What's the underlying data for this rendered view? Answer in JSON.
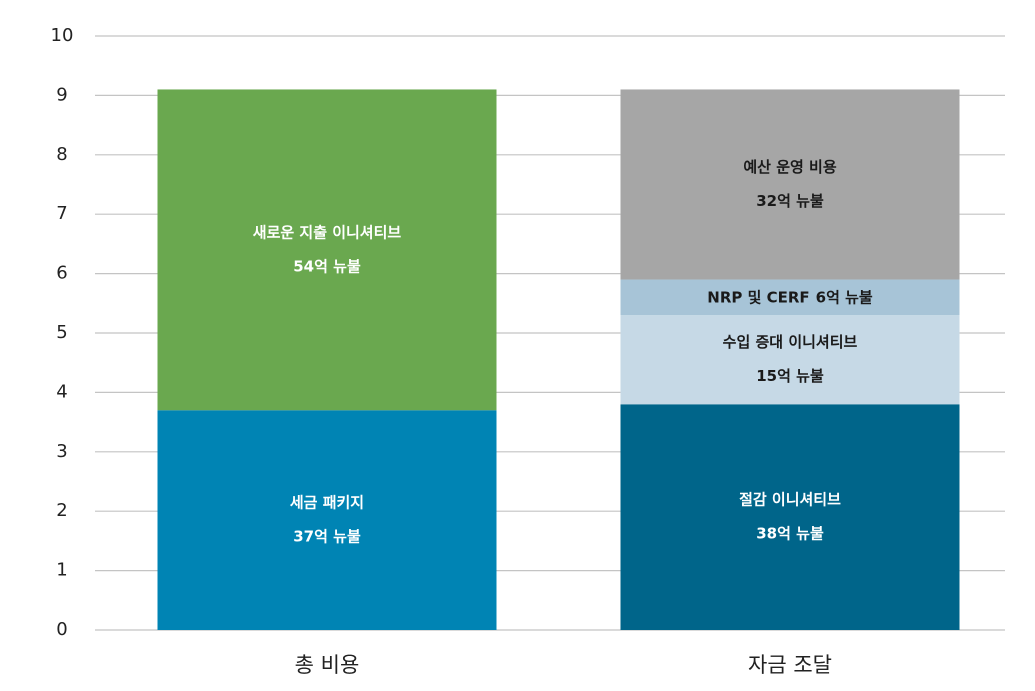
{
  "chart_data": {
    "type": "stacked_bar",
    "categories": [
      "총 비용",
      "자금 조달"
    ],
    "ylim": [
      0,
      10
    ],
    "yticks": [
      0,
      1,
      2,
      3,
      4,
      5,
      6,
      7,
      8,
      9,
      10
    ],
    "grid": true,
    "series": [
      {
        "name": "세금 패키지",
        "color": "#0084b4",
        "label_color": "#ffffff",
        "values": [
          3.7,
          null
        ],
        "value_labels": [
          "37억 뉴불",
          null
        ]
      },
      {
        "name": "새로운 지출 이니셔티브",
        "color": "#6aa84f",
        "label_color": "#ffffff",
        "values": [
          5.4,
          null
        ],
        "value_labels": [
          "54억 뉴불",
          null
        ]
      },
      {
        "name": "절감 이니셔티브",
        "color": "#00658a",
        "label_color": "#ffffff",
        "values": [
          null,
          3.8
        ],
        "value_labels": [
          null,
          "38억 뉴불"
        ]
      },
      {
        "name": "수입 증대 이니셔티브",
        "color": "#c6d9e6",
        "label_color": "#1a1a1a",
        "values": [
          null,
          1.5
        ],
        "value_labels": [
          null,
          "15억 뉴불"
        ]
      },
      {
        "name": "NRP 및 CERF",
        "color": "#a7c4d7",
        "label_color": "#1a1a1a",
        "values": [
          null,
          0.6
        ],
        "value_labels": [
          null,
          "6억 뉴불"
        ]
      },
      {
        "name": "예산 운영 비용",
        "color": "#a6a6a6",
        "label_color": "#1a1a1a",
        "values": [
          null,
          3.2
        ],
        "value_labels": [
          null,
          "32억 뉴불"
        ]
      }
    ]
  }
}
